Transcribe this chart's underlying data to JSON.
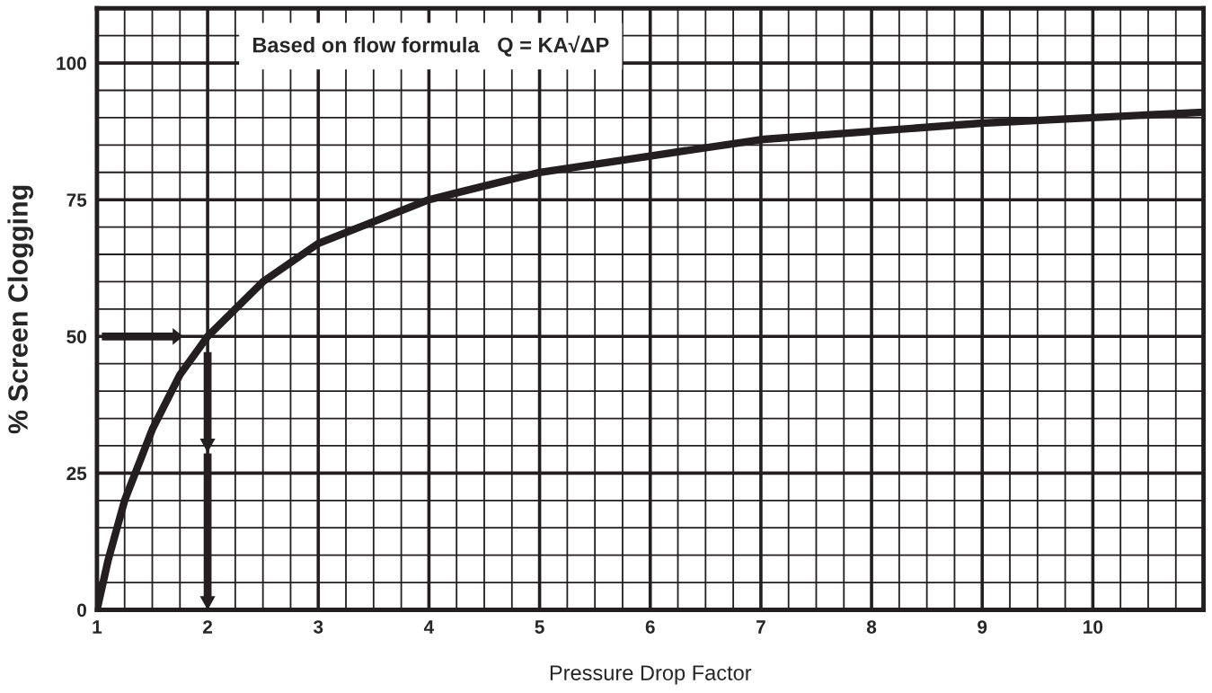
{
  "chart_data": {
    "type": "line",
    "xlabel": "Pressure Drop Factor",
    "ylabel": "% Screen Clogging",
    "annotations": [
      "Based on flow formula   Q = KA√ΔP"
    ],
    "x": [
      1,
      1.1,
      1.25,
      1.5,
      1.75,
      2,
      2.5,
      3,
      3.5,
      4,
      5,
      6,
      7,
      8,
      9,
      10,
      11
    ],
    "series": [
      {
        "color": "#231f20",
        "values": [
          0,
          9,
          20,
          33,
          43,
          50,
          60,
          67,
          71,
          75,
          80,
          83,
          86,
          87.5,
          89,
          90,
          91
        ]
      }
    ],
    "xlim": [
      1,
      11
    ],
    "ylim": [
      0,
      110
    ],
    "xticks": [
      1,
      2,
      3,
      4,
      5,
      6,
      7,
      8,
      9,
      10
    ],
    "yticks": [
      0,
      25,
      50,
      75,
      100
    ],
    "grid": true,
    "legend": false
  }
}
